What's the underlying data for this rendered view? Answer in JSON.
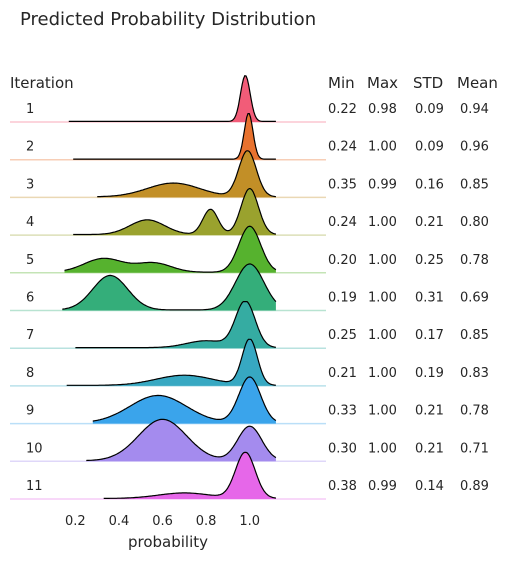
{
  "chart_data": {
    "type": "ridgeline",
    "title": "Predicted Probability Distribution",
    "ylabel": "Iteration",
    "xlabel": "probability",
    "xlim": [
      -0.1,
      1.35
    ],
    "xticks": [
      "0.2",
      "0.4",
      "0.6",
      "0.8",
      "1.0"
    ],
    "stat_headers": [
      "Min",
      "Max",
      "STD",
      "Mean"
    ],
    "series": [
      {
        "name": "1",
        "color": "#f25c78",
        "min": 0.22,
        "max": 0.98,
        "std": 0.09,
        "mean": 0.94,
        "min_label": "0.22",
        "max_label": "0.98",
        "std_label": "0.09",
        "mean_label": "0.94",
        "peaks": [
          {
            "mu": 0.98,
            "sigma": 0.022,
            "amp": 1.0
          }
        ]
      },
      {
        "name": "2",
        "color": "#e8722e",
        "min": 0.24,
        "max": 1.0,
        "std": 0.09,
        "mean": 0.96,
        "min_label": "0.24",
        "max_label": "1.00",
        "std_label": "0.09",
        "mean_label": "0.96",
        "peaks": [
          {
            "mu": 0.995,
            "sigma": 0.02,
            "amp": 1.0
          }
        ]
      },
      {
        "name": "3",
        "color": "#c28f27",
        "min": 0.35,
        "max": 0.99,
        "std": 0.16,
        "mean": 0.85,
        "min_label": "0.35",
        "max_label": "0.99",
        "std_label": "0.16",
        "mean_label": "0.85",
        "peaks": [
          {
            "mu": 0.99,
            "sigma": 0.04,
            "amp": 1.0
          },
          {
            "mu": 0.65,
            "sigma": 0.12,
            "amp": 0.3
          }
        ]
      },
      {
        "name": "4",
        "color": "#9aa22e",
        "min": 0.24,
        "max": 1.0,
        "std": 0.21,
        "mean": 0.8,
        "min_label": "0.24",
        "max_label": "1.00",
        "std_label": "0.21",
        "mean_label": "0.80",
        "peaks": [
          {
            "mu": 1.0,
            "sigma": 0.04,
            "amp": 1.0
          },
          {
            "mu": 0.82,
            "sigma": 0.035,
            "amp": 0.55
          },
          {
            "mu": 0.53,
            "sigma": 0.08,
            "amp": 0.32
          }
        ]
      },
      {
        "name": "5",
        "color": "#56b22e",
        "min": 0.2,
        "max": 1.0,
        "std": 0.25,
        "mean": 0.78,
        "min_label": "0.20",
        "max_label": "1.00",
        "std_label": "0.25",
        "mean_label": "0.78",
        "peaks": [
          {
            "mu": 1.0,
            "sigma": 0.05,
            "amp": 1.0
          },
          {
            "mu": 0.33,
            "sigma": 0.09,
            "amp": 0.3
          },
          {
            "mu": 0.56,
            "sigma": 0.08,
            "amp": 0.2
          }
        ]
      },
      {
        "name": "6",
        "color": "#34ae7a",
        "min": 0.19,
        "max": 1.0,
        "std": 0.31,
        "mean": 0.69,
        "min_label": "0.19",
        "max_label": "1.00",
        "std_label": "0.31",
        "mean_label": "0.69",
        "peaks": [
          {
            "mu": 1.0,
            "sigma": 0.065,
            "amp": 1.0
          },
          {
            "mu": 0.36,
            "sigma": 0.08,
            "amp": 0.75
          }
        ]
      },
      {
        "name": "7",
        "color": "#35aca2",
        "min": 0.25,
        "max": 1.0,
        "std": 0.17,
        "mean": 0.85,
        "min_label": "0.25",
        "max_label": "1.00",
        "std_label": "0.17",
        "mean_label": "0.85",
        "peaks": [
          {
            "mu": 0.98,
            "sigma": 0.045,
            "amp": 1.0
          },
          {
            "mu": 0.8,
            "sigma": 0.09,
            "amp": 0.15
          }
        ]
      },
      {
        "name": "8",
        "color": "#37a8c2",
        "min": 0.21,
        "max": 1.0,
        "std": 0.19,
        "mean": 0.83,
        "min_label": "0.21",
        "max_label": "1.00",
        "std_label": "0.19",
        "mean_label": "0.83",
        "peaks": [
          {
            "mu": 1.0,
            "sigma": 0.035,
            "amp": 1.0
          },
          {
            "mu": 0.7,
            "sigma": 0.13,
            "amp": 0.22
          }
        ]
      },
      {
        "name": "9",
        "color": "#3aa4eb",
        "min": 0.33,
        "max": 1.0,
        "std": 0.21,
        "mean": 0.78,
        "min_label": "0.33",
        "max_label": "1.00",
        "std_label": "0.21",
        "mean_label": "0.78",
        "peaks": [
          {
            "mu": 1.0,
            "sigma": 0.05,
            "amp": 1.0
          },
          {
            "mu": 0.58,
            "sigma": 0.13,
            "amp": 0.6
          }
        ]
      },
      {
        "name": "10",
        "color": "#a48bee",
        "min": 0.3,
        "max": 1.0,
        "std": 0.21,
        "mean": 0.71,
        "min_label": "0.30",
        "max_label": "1.00",
        "std_label": "0.21",
        "mean_label": "0.71",
        "peaks": [
          {
            "mu": 1.0,
            "sigma": 0.055,
            "amp": 0.75
          },
          {
            "mu": 0.6,
            "sigma": 0.11,
            "amp": 0.9
          }
        ]
      },
      {
        "name": "11",
        "color": "#e667e9",
        "min": 0.38,
        "max": 0.99,
        "std": 0.14,
        "mean": 0.89,
        "min_label": "0.38",
        "max_label": "0.99",
        "std_label": "0.14",
        "mean_label": "0.89",
        "peaks": [
          {
            "mu": 0.98,
            "sigma": 0.045,
            "amp": 1.0
          },
          {
            "mu": 0.7,
            "sigma": 0.12,
            "amp": 0.12
          }
        ]
      }
    ]
  }
}
